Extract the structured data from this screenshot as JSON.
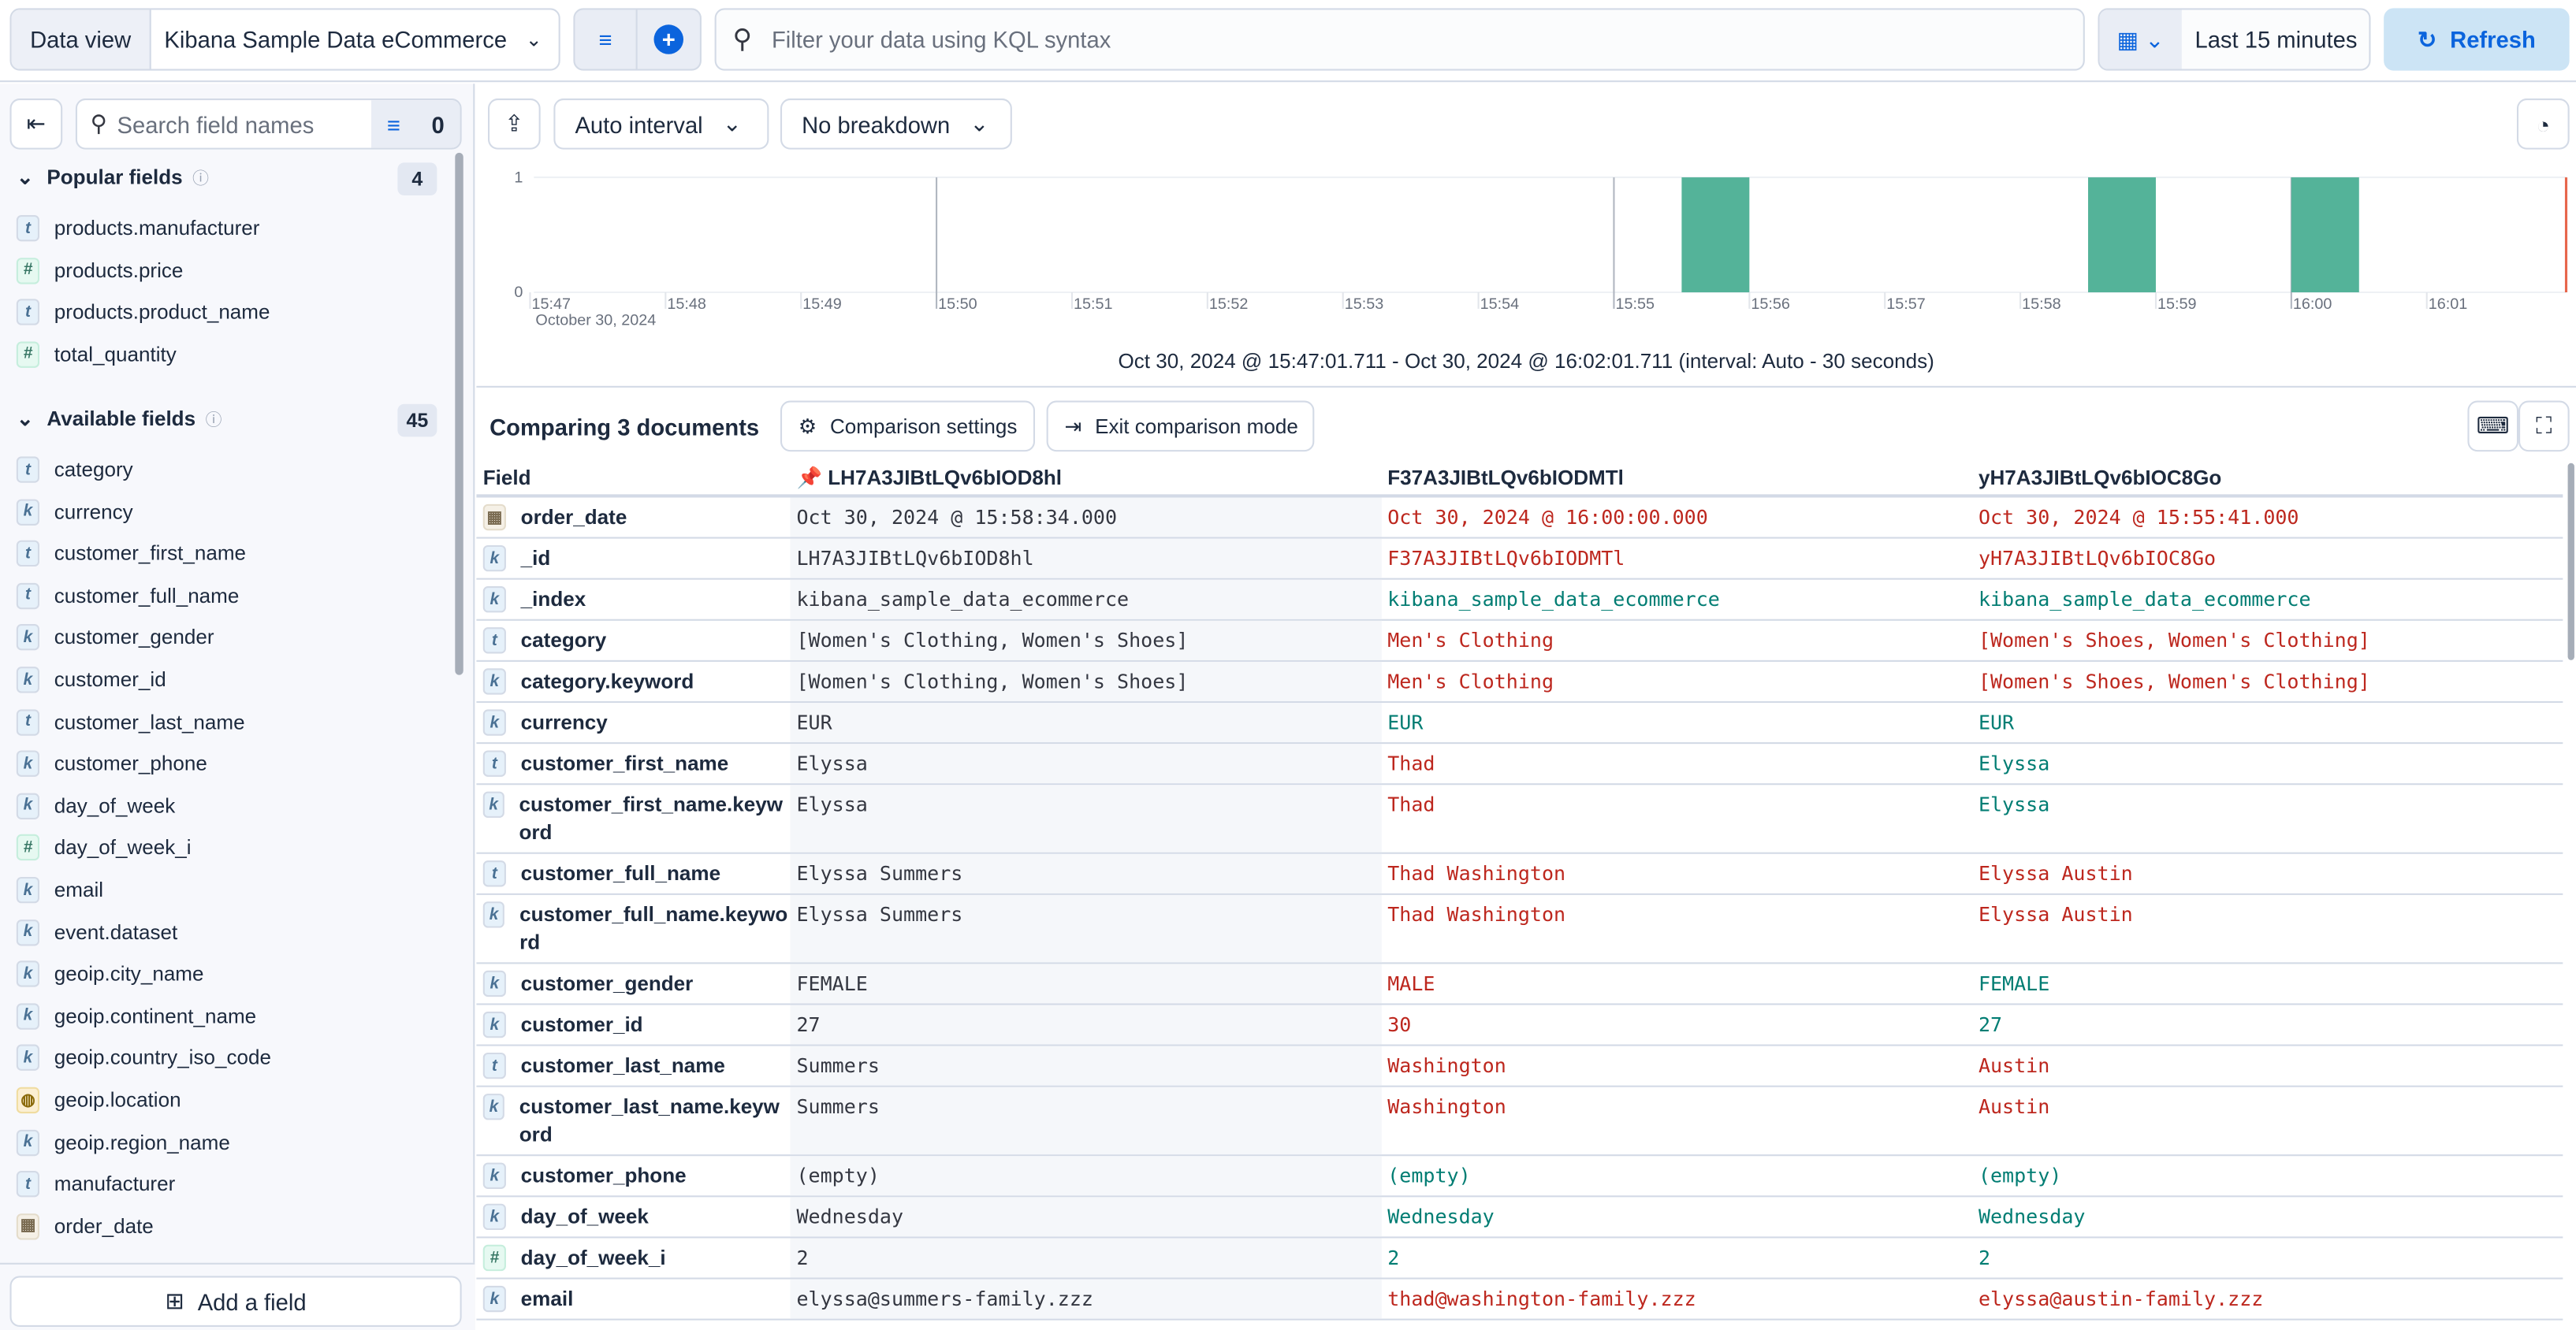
{
  "topbar": {
    "data_view_label": "Data view",
    "data_view_value": "Kibana Sample Data eCommerce",
    "query_placeholder": "Filter your data using KQL syntax",
    "time_range": "Last 15 minutes",
    "refresh_label": "Refresh",
    "accent": "#0b64dd"
  },
  "sidebar": {
    "search_placeholder": "Search field names",
    "filter_count": "0",
    "popular": {
      "title": "Popular fields",
      "count": "4",
      "items": [
        {
          "type": "t",
          "name": "products.manufacturer"
        },
        {
          "type": "#",
          "name": "products.price"
        },
        {
          "type": "t",
          "name": "products.product_name"
        },
        {
          "type": "#",
          "name": "total_quantity"
        }
      ]
    },
    "available": {
      "title": "Available fields",
      "count": "45",
      "items": [
        {
          "type": "t",
          "name": "category"
        },
        {
          "type": "k",
          "name": "currency"
        },
        {
          "type": "t",
          "name": "customer_first_name"
        },
        {
          "type": "t",
          "name": "customer_full_name"
        },
        {
          "type": "k",
          "name": "customer_gender"
        },
        {
          "type": "k",
          "name": "customer_id"
        },
        {
          "type": "t",
          "name": "customer_last_name"
        },
        {
          "type": "k",
          "name": "customer_phone"
        },
        {
          "type": "k",
          "name": "day_of_week"
        },
        {
          "type": "#",
          "name": "day_of_week_i"
        },
        {
          "type": "k",
          "name": "email"
        },
        {
          "type": "k",
          "name": "event.dataset"
        },
        {
          "type": "k",
          "name": "geoip.city_name"
        },
        {
          "type": "k",
          "name": "geoip.continent_name"
        },
        {
          "type": "k",
          "name": "geoip.country_iso_code"
        },
        {
          "type": "geo",
          "name": "geoip.location"
        },
        {
          "type": "k",
          "name": "geoip.region_name"
        },
        {
          "type": "t",
          "name": "manufacturer"
        },
        {
          "type": "date",
          "name": "order_date"
        }
      ]
    },
    "add_field_label": "Add a field"
  },
  "histogram": {
    "interval_label": "Auto interval",
    "breakdown_label": "No breakdown",
    "caption": "Oct 30, 2024 @ 15:47:01.711 - Oct 30, 2024 @ 16:02:01.711 (interval: Auto - 30 seconds)"
  },
  "chart_data": {
    "type": "bar",
    "xlim": [
      "15:47:01.711",
      "16:02:01.711"
    ],
    "ylim": [
      0,
      1
    ],
    "y_ticks": [
      "0",
      "1"
    ],
    "x_ticks": [
      "15:47",
      "15:48",
      "15:49",
      "15:50",
      "15:51",
      "15:52",
      "15:53",
      "15:54",
      "15:55",
      "15:56",
      "15:57",
      "15:58",
      "15:59",
      "16:00",
      "16:01"
    ],
    "x_sublabel": "October 30, 2024",
    "interval_seconds": 30,
    "bar_color": "#54b399",
    "bars": [
      {
        "x": "15:55:30",
        "value": 1
      },
      {
        "x": "15:58:30",
        "value": 1
      },
      {
        "x": "16:00:00",
        "value": 1
      }
    ]
  },
  "comparison": {
    "title": "Comparing 3 documents",
    "settings_label": "Comparison settings",
    "exit_label": "Exit comparison mode",
    "headers": [
      "Field",
      "LH7A3JIBtLQv6bIOD8hl",
      "F37A3JIBtLQv6bIODMTl",
      "yH7A3JIBtLQv6bIOC8Go"
    ],
    "colors": {
      "same": "#017d73",
      "diff": "#bd271e"
    },
    "rows": [
      {
        "type": "date",
        "field": "order_date",
        "values": [
          "Oct 30, 2024 @ 15:58:34.000",
          "Oct 30, 2024 @ 16:00:00.000",
          "Oct 30, 2024 @ 15:55:41.000"
        ],
        "status": [
          "base",
          "diff",
          "diff"
        ]
      },
      {
        "type": "k",
        "field": "_id",
        "values": [
          "LH7A3JIBtLQv6bIOD8hl",
          "F37A3JIBtLQv6bIODMTl",
          "yH7A3JIBtLQv6bIOC8Go"
        ],
        "status": [
          "base",
          "diff",
          "diff"
        ]
      },
      {
        "type": "k",
        "field": "_index",
        "values": [
          "kibana_sample_data_ecommerce",
          "kibana_sample_data_ecommerce",
          "kibana_sample_data_ecommerce"
        ],
        "status": [
          "base",
          "same",
          "same"
        ]
      },
      {
        "type": "t",
        "field": "category",
        "values": [
          "[Women's Clothing, Women's Shoes]",
          "Men's Clothing",
          "[Women's Shoes, Women's Clothing]"
        ],
        "status": [
          "base",
          "diff",
          "diff"
        ]
      },
      {
        "type": "k",
        "field": "category.keyword",
        "values": [
          "[Women's Clothing, Women's Shoes]",
          "Men's Clothing",
          "[Women's Shoes, Women's Clothing]"
        ],
        "status": [
          "base",
          "diff",
          "diff"
        ]
      },
      {
        "type": "k",
        "field": "currency",
        "values": [
          "EUR",
          "EUR",
          "EUR"
        ],
        "status": [
          "base",
          "same",
          "same"
        ]
      },
      {
        "type": "t",
        "field": "customer_first_name",
        "values": [
          "Elyssa",
          "Thad",
          "Elyssa"
        ],
        "status": [
          "base",
          "diff",
          "same"
        ]
      },
      {
        "type": "k",
        "field": "customer_first_name.keyword",
        "values": [
          "Elyssa",
          "Thad",
          "Elyssa"
        ],
        "status": [
          "base",
          "diff",
          "same"
        ]
      },
      {
        "type": "t",
        "field": "customer_full_name",
        "values": [
          "Elyssa Summers",
          "Thad Washington",
          "Elyssa Austin"
        ],
        "status": [
          "base",
          "diff",
          "diff"
        ]
      },
      {
        "type": "k",
        "field": "customer_full_name.keyword",
        "values": [
          "Elyssa Summers",
          "Thad Washington",
          "Elyssa Austin"
        ],
        "status": [
          "base",
          "diff",
          "diff"
        ]
      },
      {
        "type": "k",
        "field": "customer_gender",
        "values": [
          "FEMALE",
          "MALE",
          "FEMALE"
        ],
        "status": [
          "base",
          "diff",
          "same"
        ]
      },
      {
        "type": "k",
        "field": "customer_id",
        "values": [
          "27",
          "30",
          "27"
        ],
        "status": [
          "base",
          "diff",
          "same"
        ]
      },
      {
        "type": "t",
        "field": "customer_last_name",
        "values": [
          "Summers",
          "Washington",
          "Austin"
        ],
        "status": [
          "base",
          "diff",
          "diff"
        ]
      },
      {
        "type": "k",
        "field": "customer_last_name.keyword",
        "values": [
          "Summers",
          "Washington",
          "Austin"
        ],
        "status": [
          "base",
          "diff",
          "diff"
        ]
      },
      {
        "type": "k",
        "field": "customer_phone",
        "values": [
          "(empty)",
          "(empty)",
          "(empty)"
        ],
        "status": [
          "base",
          "same",
          "same"
        ]
      },
      {
        "type": "k",
        "field": "day_of_week",
        "values": [
          "Wednesday",
          "Wednesday",
          "Wednesday"
        ],
        "status": [
          "base",
          "same",
          "same"
        ]
      },
      {
        "type": "#",
        "field": "day_of_week_i",
        "values": [
          "2",
          "2",
          "2"
        ],
        "status": [
          "base",
          "same",
          "same"
        ]
      },
      {
        "type": "k",
        "field": "email",
        "values": [
          "elyssa@summers-family.zzz",
          "thad@washington-family.zzz",
          "elyssa@austin-family.zzz"
        ],
        "status": [
          "base",
          "diff",
          "diff"
        ]
      }
    ]
  }
}
